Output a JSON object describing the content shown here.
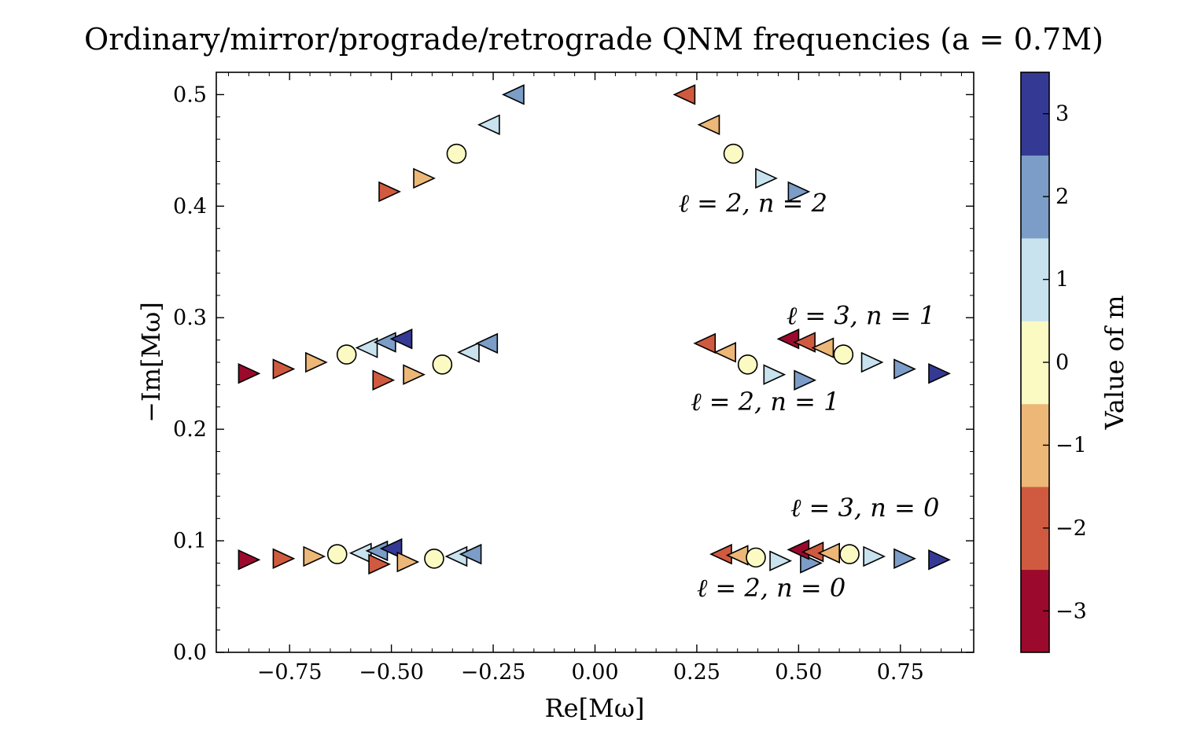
{
  "chart_data": {
    "type": "scatter",
    "title": "Ordinary/mirror/prograde/retrograde QNM frequencies (a = 0.7M)",
    "xlabel": "Re[Mω]",
    "ylabel": "−Im[Mω]",
    "xlim": [
      -0.93,
      0.93
    ],
    "ylim": [
      0.0,
      0.52
    ],
    "xticks": [
      -0.75,
      -0.5,
      -0.25,
      0.0,
      0.25,
      0.5,
      0.75
    ],
    "xtick_labels": [
      "−0.75",
      "−0.50",
      "−0.25",
      "0.00",
      "0.25",
      "0.50",
      "0.75"
    ],
    "yticks": [
      0.0,
      0.1,
      0.2,
      0.3,
      0.4,
      0.5
    ],
    "ytick_labels": [
      "0.0",
      "0.1",
      "0.2",
      "0.3",
      "0.4",
      "0.5"
    ],
    "grid": false,
    "colorbar": {
      "label": "Value of m",
      "ticks": [
        -3,
        -2,
        -1,
        0,
        1,
        2,
        3
      ],
      "tick_labels": [
        "−3",
        "−2",
        "−1",
        "0",
        "1",
        "2",
        "3"
      ],
      "colors": [
        "#9b0a2c",
        "#d05a3f",
        "#ecb777",
        "#fcfac3",
        "#c8e2ee",
        "#7b9dc7",
        "#343a94"
      ]
    },
    "markers": {
      "circle": "m = 0",
      "triangle-right": "prograde",
      "triangle-left": "retrograde"
    },
    "points": [
      {
        "x": -0.85,
        "y": 0.083,
        "m": -3,
        "marker": "right"
      },
      {
        "x": -0.765,
        "y": 0.084,
        "m": -2,
        "marker": "right"
      },
      {
        "x": -0.69,
        "y": 0.086,
        "m": -1,
        "marker": "right"
      },
      {
        "x": -0.633,
        "y": 0.088,
        "m": 0,
        "marker": "circle"
      },
      {
        "x": -0.575,
        "y": 0.089,
        "m": 1,
        "marker": "left"
      },
      {
        "x": -0.535,
        "y": 0.091,
        "m": 2,
        "marker": "left"
      },
      {
        "x": -0.5,
        "y": 0.093,
        "m": 3,
        "marker": "left"
      },
      {
        "x": -0.53,
        "y": 0.079,
        "m": -2,
        "marker": "right"
      },
      {
        "x": -0.46,
        "y": 0.081,
        "m": -1,
        "marker": "right"
      },
      {
        "x": -0.395,
        "y": 0.084,
        "m": 0,
        "marker": "circle"
      },
      {
        "x": -0.34,
        "y": 0.086,
        "m": 1,
        "marker": "left"
      },
      {
        "x": -0.305,
        "y": 0.088,
        "m": 2,
        "marker": "left"
      },
      {
        "x": 0.31,
        "y": 0.088,
        "m": -2,
        "marker": "left"
      },
      {
        "x": 0.35,
        "y": 0.087,
        "m": -1,
        "marker": "left"
      },
      {
        "x": 0.395,
        "y": 0.085,
        "m": 0,
        "marker": "circle"
      },
      {
        "x": 0.455,
        "y": 0.082,
        "m": 1,
        "marker": "right"
      },
      {
        "x": 0.53,
        "y": 0.08,
        "m": 2,
        "marker": "right"
      },
      {
        "x": 0.5,
        "y": 0.092,
        "m": -3,
        "marker": "left"
      },
      {
        "x": 0.535,
        "y": 0.09,
        "m": -2,
        "marker": "left"
      },
      {
        "x": 0.575,
        "y": 0.089,
        "m": -1,
        "marker": "left"
      },
      {
        "x": 0.625,
        "y": 0.088,
        "m": 0,
        "marker": "circle"
      },
      {
        "x": 0.685,
        "y": 0.086,
        "m": 1,
        "marker": "right"
      },
      {
        "x": 0.76,
        "y": 0.084,
        "m": 2,
        "marker": "right"
      },
      {
        "x": 0.845,
        "y": 0.083,
        "m": 3,
        "marker": "right"
      },
      {
        "x": -0.85,
        "y": 0.25,
        "m": -3,
        "marker": "right"
      },
      {
        "x": -0.765,
        "y": 0.254,
        "m": -2,
        "marker": "right"
      },
      {
        "x": -0.685,
        "y": 0.26,
        "m": -1,
        "marker": "right"
      },
      {
        "x": -0.61,
        "y": 0.267,
        "m": 0,
        "marker": "circle"
      },
      {
        "x": -0.56,
        "y": 0.273,
        "m": 1,
        "marker": "left"
      },
      {
        "x": -0.515,
        "y": 0.278,
        "m": 2,
        "marker": "left"
      },
      {
        "x": -0.475,
        "y": 0.281,
        "m": 3,
        "marker": "left"
      },
      {
        "x": -0.52,
        "y": 0.244,
        "m": -2,
        "marker": "right"
      },
      {
        "x": -0.445,
        "y": 0.249,
        "m": -1,
        "marker": "right"
      },
      {
        "x": -0.375,
        "y": 0.258,
        "m": 0,
        "marker": "circle"
      },
      {
        "x": -0.31,
        "y": 0.269,
        "m": 1,
        "marker": "left"
      },
      {
        "x": -0.265,
        "y": 0.277,
        "m": 2,
        "marker": "left"
      },
      {
        "x": 0.27,
        "y": 0.277,
        "m": -2,
        "marker": "left"
      },
      {
        "x": 0.32,
        "y": 0.269,
        "m": -1,
        "marker": "left"
      },
      {
        "x": 0.375,
        "y": 0.258,
        "m": 0,
        "marker": "circle"
      },
      {
        "x": 0.44,
        "y": 0.249,
        "m": 1,
        "marker": "right"
      },
      {
        "x": 0.515,
        "y": 0.244,
        "m": 2,
        "marker": "right"
      },
      {
        "x": 0.475,
        "y": 0.281,
        "m": -3,
        "marker": "left"
      },
      {
        "x": 0.515,
        "y": 0.278,
        "m": -2,
        "marker": "left"
      },
      {
        "x": 0.56,
        "y": 0.273,
        "m": -1,
        "marker": "left"
      },
      {
        "x": 0.61,
        "y": 0.267,
        "m": 0,
        "marker": "circle"
      },
      {
        "x": 0.68,
        "y": 0.26,
        "m": 1,
        "marker": "right"
      },
      {
        "x": 0.76,
        "y": 0.254,
        "m": 2,
        "marker": "right"
      },
      {
        "x": 0.845,
        "y": 0.25,
        "m": 3,
        "marker": "right"
      },
      {
        "x": -0.505,
        "y": 0.413,
        "m": -2,
        "marker": "right"
      },
      {
        "x": -0.42,
        "y": 0.425,
        "m": -1,
        "marker": "right"
      },
      {
        "x": -0.34,
        "y": 0.447,
        "m": 0,
        "marker": "circle"
      },
      {
        "x": -0.26,
        "y": 0.473,
        "m": 1,
        "marker": "left"
      },
      {
        "x": -0.2,
        "y": 0.5,
        "m": 2,
        "marker": "left"
      },
      {
        "x": 0.22,
        "y": 0.5,
        "m": -2,
        "marker": "left"
      },
      {
        "x": 0.28,
        "y": 0.473,
        "m": -1,
        "marker": "left"
      },
      {
        "x": 0.34,
        "y": 0.447,
        "m": 0,
        "marker": "circle"
      },
      {
        "x": 0.42,
        "y": 0.425,
        "m": 1,
        "marker": "right"
      },
      {
        "x": 0.5,
        "y": 0.413,
        "m": 2,
        "marker": "right"
      }
    ],
    "annotations": [
      {
        "text": "ℓ = 2, n = 2",
        "x": 0.205,
        "y": 0.395
      },
      {
        "text": "ℓ = 3, n = 1",
        "x": 0.47,
        "y": 0.294
      },
      {
        "text": "ℓ = 2, n = 1",
        "x": 0.235,
        "y": 0.217
      },
      {
        "text": "ℓ = 3, n = 0",
        "x": 0.48,
        "y": 0.122
      },
      {
        "text": "ℓ = 2, n = 0",
        "x": 0.25,
        "y": 0.05
      }
    ]
  }
}
